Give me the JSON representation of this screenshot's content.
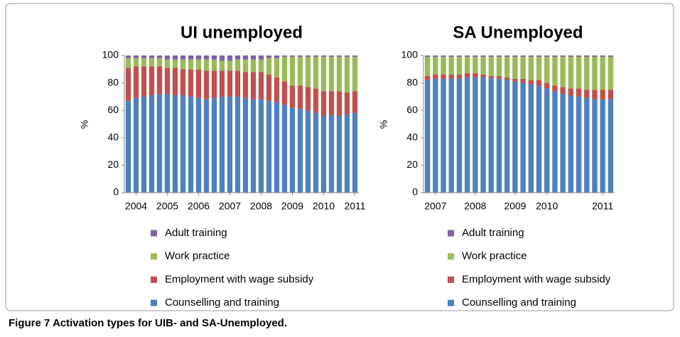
{
  "chart_data": [
    {
      "type": "stacked-bar",
      "title": "UI unemployed",
      "y_label": "%",
      "categories": [
        null,
        "2004",
        null,
        null,
        null,
        "2005",
        null,
        null,
        null,
        "2006",
        null,
        null,
        null,
        "2007",
        null,
        null,
        null,
        "2008",
        null,
        null,
        null,
        "2009",
        null,
        null,
        null,
        "2010",
        null,
        null,
        null,
        "2011"
      ],
      "series": [
        {
          "name": "Counselling and training",
          "color": "#4f81bd",
          "values": [
            67,
            69,
            70,
            71,
            72,
            72,
            71,
            71,
            70,
            69,
            68,
            69,
            70,
            70,
            70,
            69,
            68,
            68,
            67,
            66,
            64,
            62,
            61,
            60,
            58,
            56,
            57,
            56,
            57,
            58
          ]
        },
        {
          "name": "Employment with wage subsidy",
          "color": "#c0504d",
          "values": [
            24,
            23,
            22,
            21,
            20,
            19,
            20,
            19,
            20,
            21,
            21,
            20,
            19,
            19,
            19,
            19,
            20,
            20,
            19,
            18,
            17,
            16,
            17,
            17,
            18,
            18,
            17,
            18,
            16,
            16
          ]
        },
        {
          "name": "Work practice",
          "color": "#9bbb59",
          "values": [
            7,
            6,
            6,
            6,
            6,
            6,
            6,
            7,
            7,
            7,
            8,
            8,
            7,
            7,
            8,
            9,
            9,
            9,
            12,
            14,
            18,
            21,
            21,
            22,
            23,
            25,
            25,
            25,
            26,
            25
          ]
        },
        {
          "name": "Adult training",
          "color": "#8064a2",
          "values": [
            2,
            2,
            2,
            2,
            2,
            3,
            3,
            3,
            3,
            3,
            3,
            3,
            4,
            4,
            3,
            3,
            3,
            3,
            2,
            2,
            1,
            1,
            1,
            1,
            1,
            1,
            1,
            1,
            1,
            1
          ]
        }
      ],
      "ylim": [
        0,
        100
      ],
      "yticks": [
        0,
        20,
        40,
        60,
        80,
        100
      ]
    },
    {
      "type": "stacked-bar",
      "title": "SA Unemployed",
      "y_label": "%",
      "categories": [
        null,
        "2007",
        null,
        null,
        null,
        null,
        "2008",
        null,
        null,
        null,
        null,
        "2009",
        null,
        null,
        null,
        "2010",
        null,
        null,
        null,
        null,
        null,
        null,
        "2011",
        null
      ],
      "series": [
        {
          "name": "Counselling and training",
          "color": "#4f81bd",
          "values": [
            82,
            83,
            83,
            83,
            83,
            84,
            84,
            84,
            83,
            83,
            82,
            81,
            80,
            79,
            78,
            76,
            74,
            72,
            71,
            70,
            69,
            68,
            68,
            68
          ]
        },
        {
          "name": "Employment with wage subsidy",
          "color": "#c0504d",
          "values": [
            3,
            3,
            3,
            3,
            3,
            3,
            3,
            2,
            2,
            2,
            2,
            2,
            3,
            3,
            4,
            4,
            4,
            5,
            5,
            6,
            6,
            7,
            7,
            7
          ]
        },
        {
          "name": "Work practice",
          "color": "#9bbb59",
          "values": [
            14,
            13,
            13,
            13,
            13,
            12,
            12,
            13,
            14,
            14,
            15,
            16,
            16,
            17,
            17,
            19,
            21,
            22,
            23,
            23,
            24,
            24,
            24,
            24
          ]
        },
        {
          "name": "Adult training",
          "color": "#8064a2",
          "values": [
            1,
            1,
            1,
            1,
            1,
            1,
            1,
            1,
            1,
            1,
            1,
            1,
            1,
            1,
            1,
            1,
            1,
            1,
            1,
            1,
            1,
            1,
            1,
            1
          ]
        }
      ],
      "ylim": [
        0,
        100
      ],
      "yticks": [
        0,
        20,
        40,
        60,
        80,
        100
      ]
    }
  ],
  "caption": "Figure 7 Activation types for UIB- and SA-Unemployed."
}
